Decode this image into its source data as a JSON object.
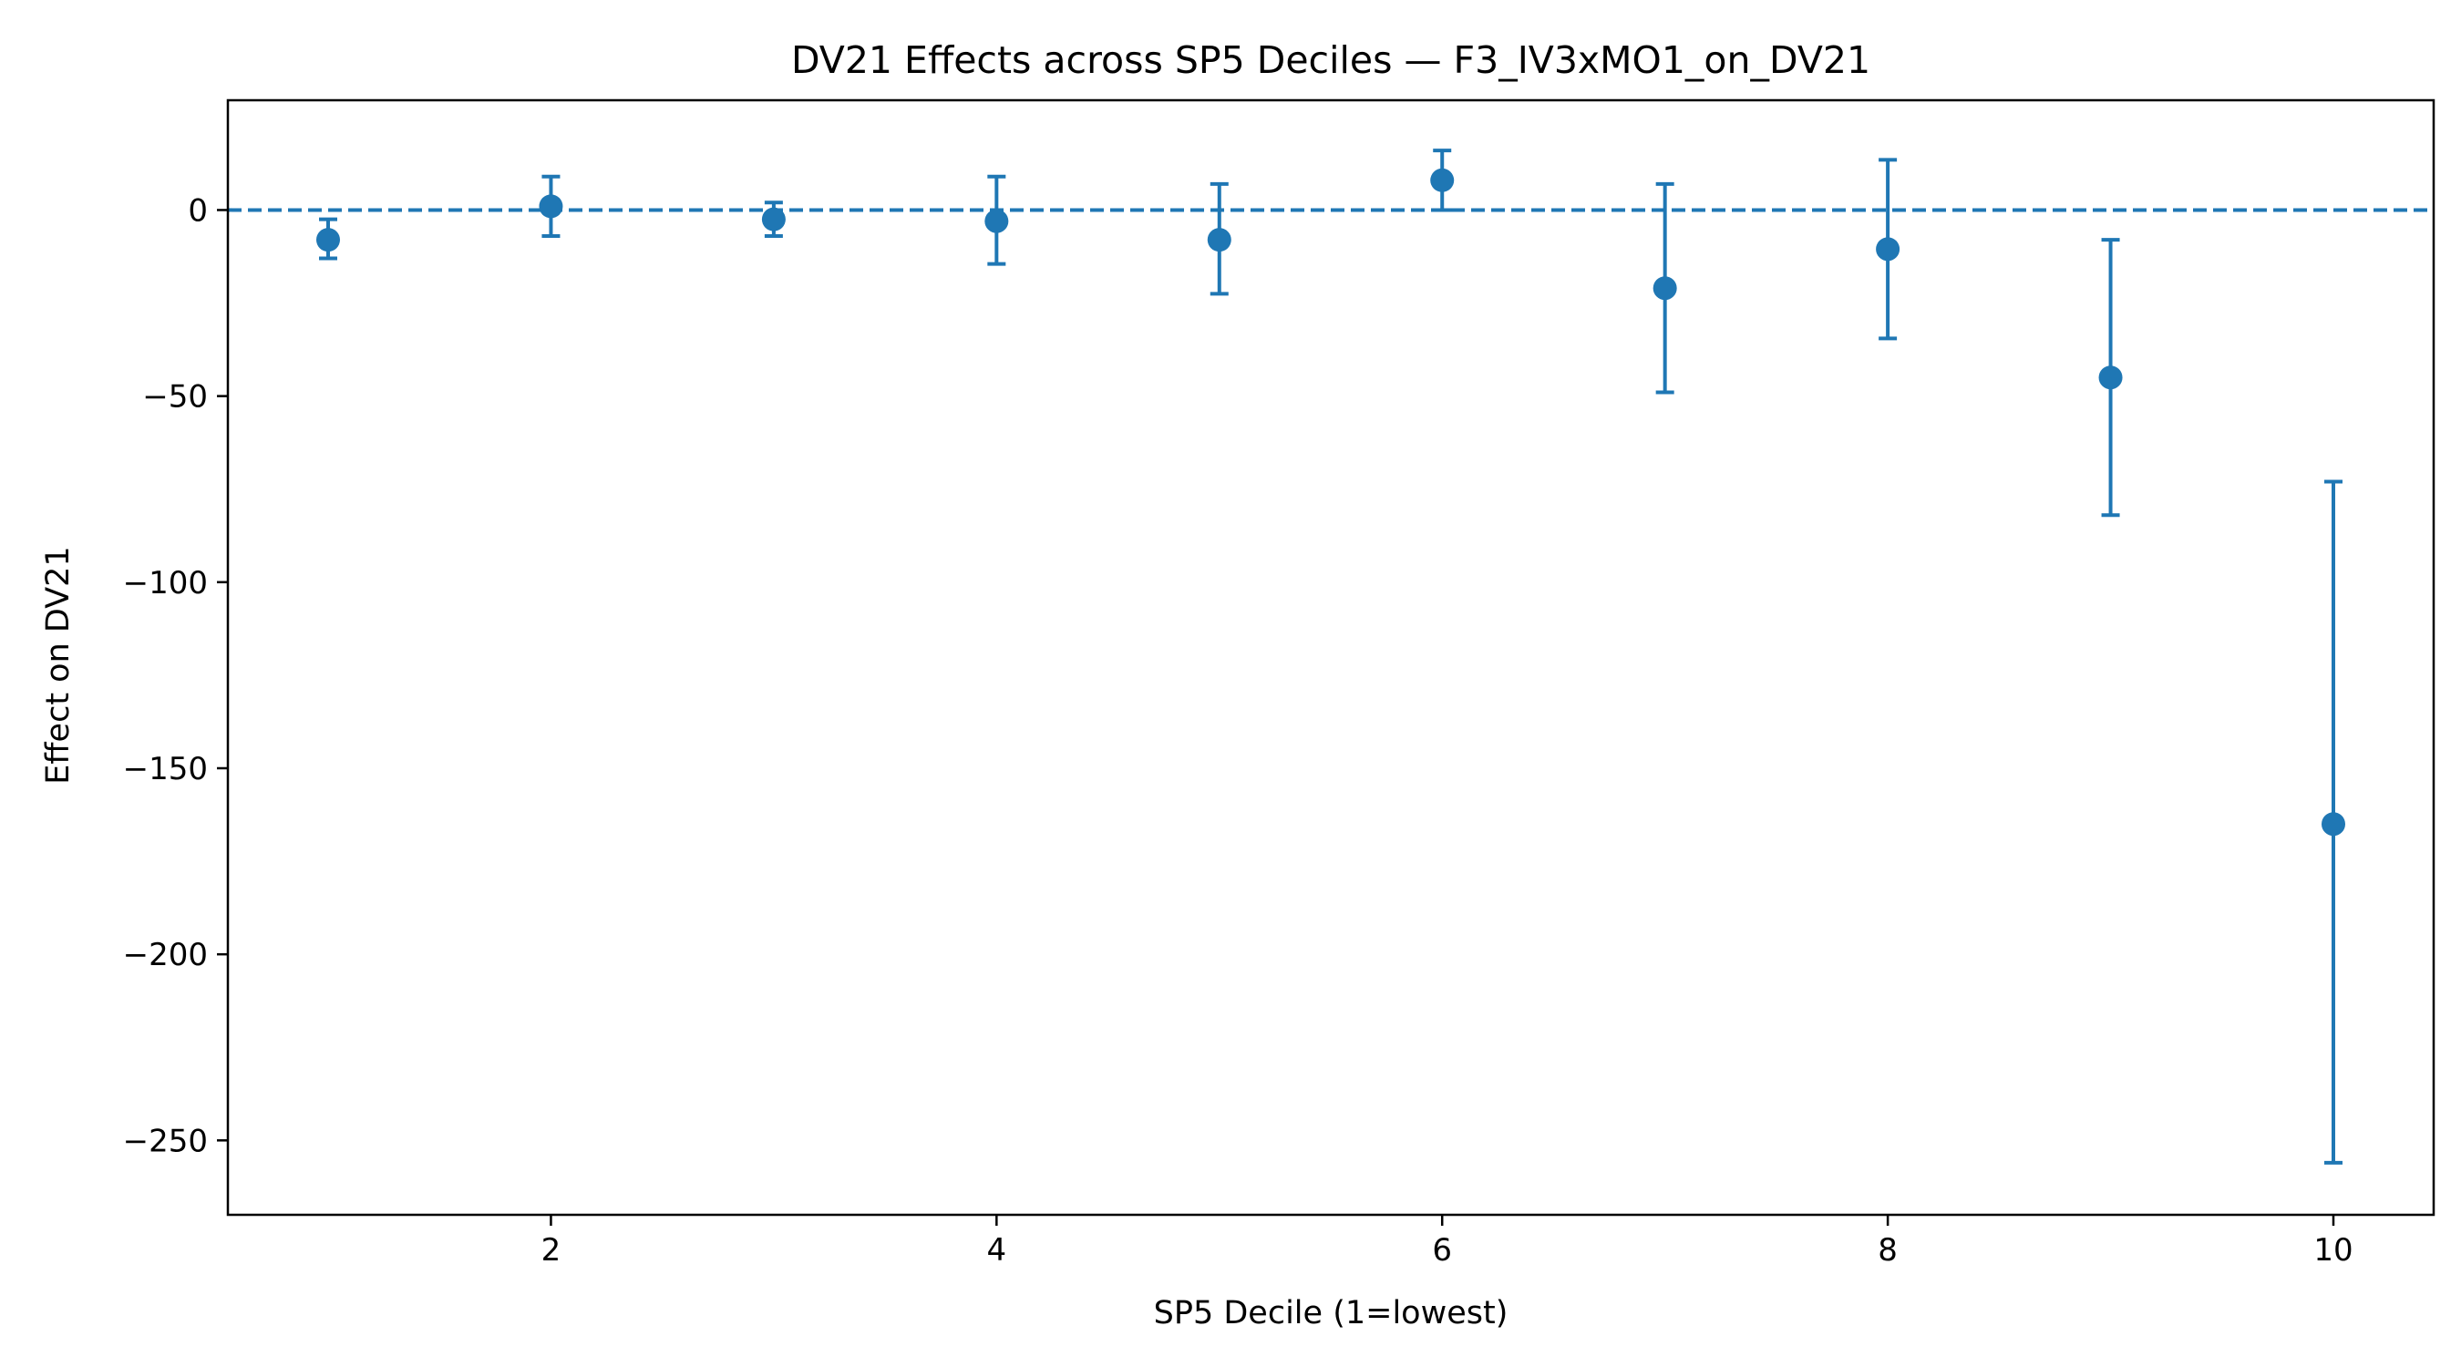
{
  "chart_data": {
    "type": "scatter",
    "title": "DV21 Effects across SP5 Deciles — F3_IV3xMO1_on_DV21",
    "xlabel": "SP5 Decile (1=lowest)",
    "ylabel": "Effect on DV21",
    "xlim": [
      0.55,
      10.45
    ],
    "ylim": [
      -270,
      29.5
    ],
    "x_ticks": [
      2,
      4,
      6,
      8,
      10
    ],
    "x_tick_labels": [
      "2",
      "4",
      "6",
      "8",
      "10"
    ],
    "y_ticks": [
      0,
      -50,
      -100,
      -150,
      -200,
      -250
    ],
    "y_tick_labels": [
      "0",
      "−50",
      "−100",
      "−150",
      "−200",
      "−250"
    ],
    "grid": false,
    "reference_line": {
      "y": 0,
      "style": "dashed"
    },
    "color": "#1f77b4",
    "points": [
      {
        "x": 1,
        "y": -8,
        "lower": -13,
        "upper": -2.5
      },
      {
        "x": 2,
        "y": 1,
        "lower": -7,
        "upper": 9
      },
      {
        "x": 3,
        "y": -2.5,
        "lower": -7,
        "upper": 2
      },
      {
        "x": 4,
        "y": -3,
        "lower": -14.5,
        "upper": 9
      },
      {
        "x": 5,
        "y": -8,
        "lower": -22.5,
        "upper": 7
      },
      {
        "x": 6,
        "y": 8,
        "lower": 0,
        "upper": 16
      },
      {
        "x": 7,
        "y": -21,
        "lower": -49,
        "upper": 7
      },
      {
        "x": 8,
        "y": -10.5,
        "lower": -34.5,
        "upper": 13.5
      },
      {
        "x": 9,
        "y": -45,
        "lower": -82,
        "upper": -8
      },
      {
        "x": 10,
        "y": -165,
        "lower": -256,
        "upper": -73
      }
    ]
  }
}
